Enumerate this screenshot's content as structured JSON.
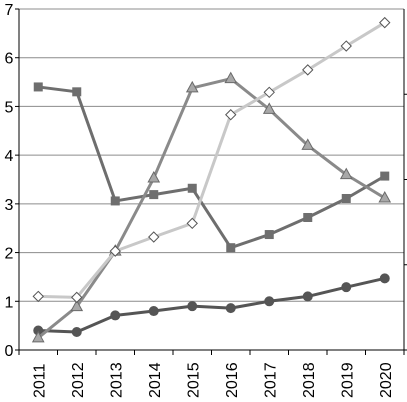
{
  "chart_data": {
    "type": "line",
    "x": [
      "2011",
      "2012",
      "2013",
      "2014",
      "2015",
      "2016",
      "2017",
      "2018",
      "2019",
      "2020"
    ],
    "ylim": [
      0,
      7
    ],
    "yticks": [
      "0",
      "1",
      "2",
      "3",
      "4",
      "5",
      "6",
      "7"
    ],
    "grid": true,
    "secondary_axis_ticks": true,
    "legend": "none",
    "series": [
      {
        "marker": "circle",
        "color": "#555555",
        "values": [
          0.4,
          0.37,
          0.71,
          0.8,
          0.9,
          0.86,
          1.0,
          1.1,
          1.29,
          1.47
        ]
      },
      {
        "marker": "square",
        "color": "#6e6e6e",
        "values": [
          5.4,
          5.3,
          3.06,
          3.19,
          3.32,
          2.1,
          2.37,
          2.72,
          3.11,
          3.57
        ]
      },
      {
        "marker": "triangle",
        "color": "#8a8a8a",
        "values": [
          0.25,
          0.89,
          2.03,
          3.53,
          5.38,
          5.57,
          4.94,
          4.2,
          3.6,
          3.12
        ]
      },
      {
        "marker": "diamond",
        "color": "#c8c8c8",
        "values": [
          1.1,
          1.08,
          2.03,
          2.32,
          2.6,
          4.83,
          5.29,
          5.75,
          6.24,
          6.72
        ]
      }
    ]
  }
}
